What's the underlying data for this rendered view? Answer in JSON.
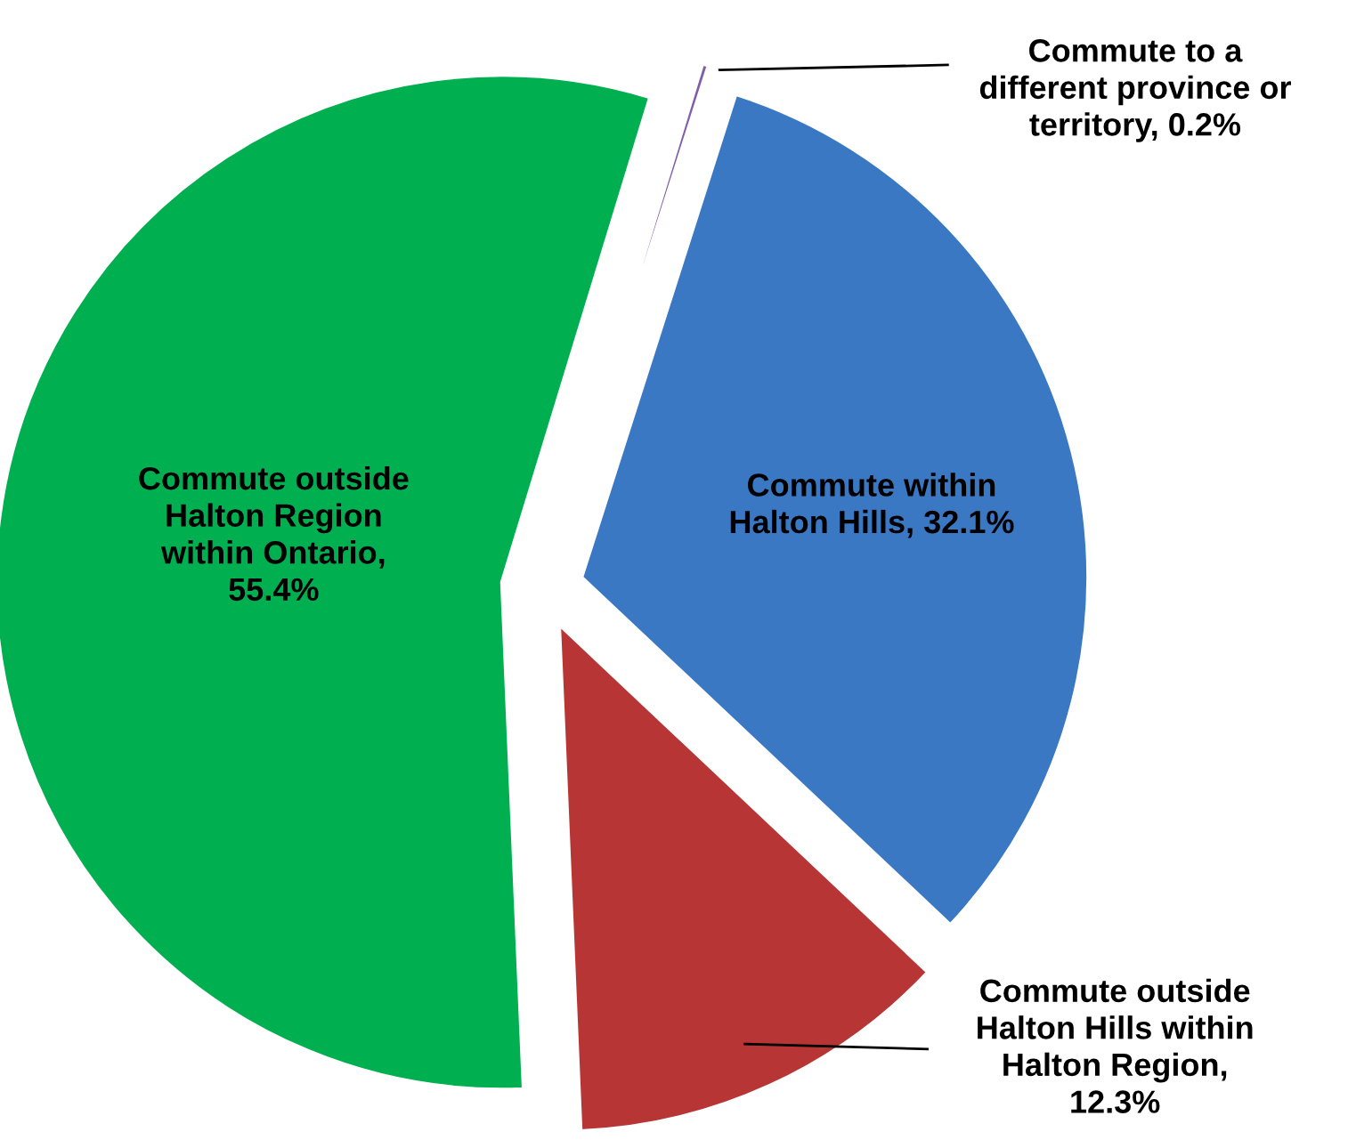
{
  "chart_data": {
    "type": "pie",
    "categories": [
      "Commute to a\ndifferent province or\nterritory, 0.2%",
      "Commute within\nHalton Hills, 32.1%",
      "Commute outside\nHalton Hills within\nHalton Region,\n12.3%",
      "Commute outside\nHalton Region\nwithin Ontario,\n55.4%"
    ],
    "values": [
      0.2,
      32.1,
      12.3,
      55.4
    ],
    "colors": [
      "#7f5fa8",
      "#3b78c4",
      "#b83535",
      "#00b050"
    ]
  }
}
